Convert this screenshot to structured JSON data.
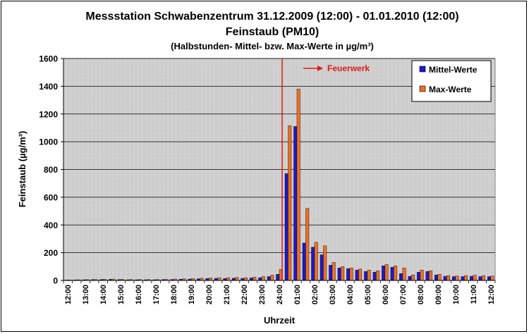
{
  "chart_data": {
    "type": "bar",
    "title": "Messstation Schwabenzentrum 31.12.2009 (12:00) - 01.01.2010 (12:00)",
    "subtitle": "Feinstaub (PM10)",
    "subtitle2": "(Halbstunden- Mittel- bzw. Max-Werte in µg/m³)",
    "xlabel": "Uhrzeit",
    "ylabel": "Feinstaub (µg/m³)",
    "ylim": [
      0,
      1600
    ],
    "yticks": [
      0,
      200,
      400,
      600,
      800,
      1000,
      1200,
      1400,
      1600
    ],
    "grid": true,
    "legend_position": "top-right",
    "categories": [
      "12:00",
      "12:30",
      "13:00",
      "13:30",
      "14:00",
      "14:30",
      "15:00",
      "15:30",
      "16:00",
      "16:30",
      "17:00",
      "17:30",
      "18:00",
      "18:30",
      "19:00",
      "19:30",
      "20:00",
      "20:30",
      "21:00",
      "21:30",
      "22:00",
      "22:30",
      "23:00",
      "23:30",
      "24:00",
      "00:30",
      "01:00",
      "01:30",
      "02:00",
      "02:30",
      "03:00",
      "03:30",
      "04:00",
      "04:30",
      "05:00",
      "05:30",
      "06:00",
      "06:30",
      "07:00",
      "07:30",
      "08:00",
      "08:30",
      "09:00",
      "09:30",
      "10:00",
      "10:30",
      "11:00",
      "11:30",
      "12:00"
    ],
    "xtick_labels": [
      "12:00",
      "13:00",
      "14:00",
      "15:00",
      "16:00",
      "17:00",
      "18:00",
      "19:00",
      "20:00",
      "21:00",
      "22:00",
      "23:00",
      "24:00",
      "01:00",
      "02:00",
      "03:00",
      "04:00",
      "05:00",
      "06:00",
      "07:00",
      "08:00",
      "09:00",
      "10:00",
      "11:00",
      "12:00"
    ],
    "series": [
      {
        "name": "Mittel-Werte",
        "color": "#1a1acc",
        "values": [
          3,
          4,
          5,
          6,
          7,
          8,
          6,
          5,
          5,
          5,
          5,
          6,
          7,
          9,
          10,
          12,
          14,
          15,
          14,
          16,
          15,
          18,
          20,
          28,
          45,
          770,
          1110,
          270,
          240,
          185,
          110,
          90,
          85,
          75,
          65,
          60,
          105,
          95,
          50,
          30,
          60,
          65,
          40,
          30,
          28,
          28,
          30,
          28,
          28
        ]
      },
      {
        "name": "Max-Werte",
        "color": "#f07020",
        "values": [
          4,
          5,
          6,
          7,
          9,
          10,
          8,
          7,
          7,
          7,
          7,
          8,
          10,
          12,
          14,
          16,
          18,
          20,
          20,
          22,
          20,
          24,
          28,
          38,
          80,
          1115,
          1380,
          520,
          275,
          250,
          130,
          100,
          90,
          82,
          75,
          70,
          115,
          105,
          90,
          40,
          75,
          70,
          45,
          35,
          32,
          35,
          38,
          35,
          32
        ]
      }
    ],
    "annotation": {
      "label": "Feuerwerk",
      "at_category": "24:00",
      "color": "#e01818"
    }
  }
}
